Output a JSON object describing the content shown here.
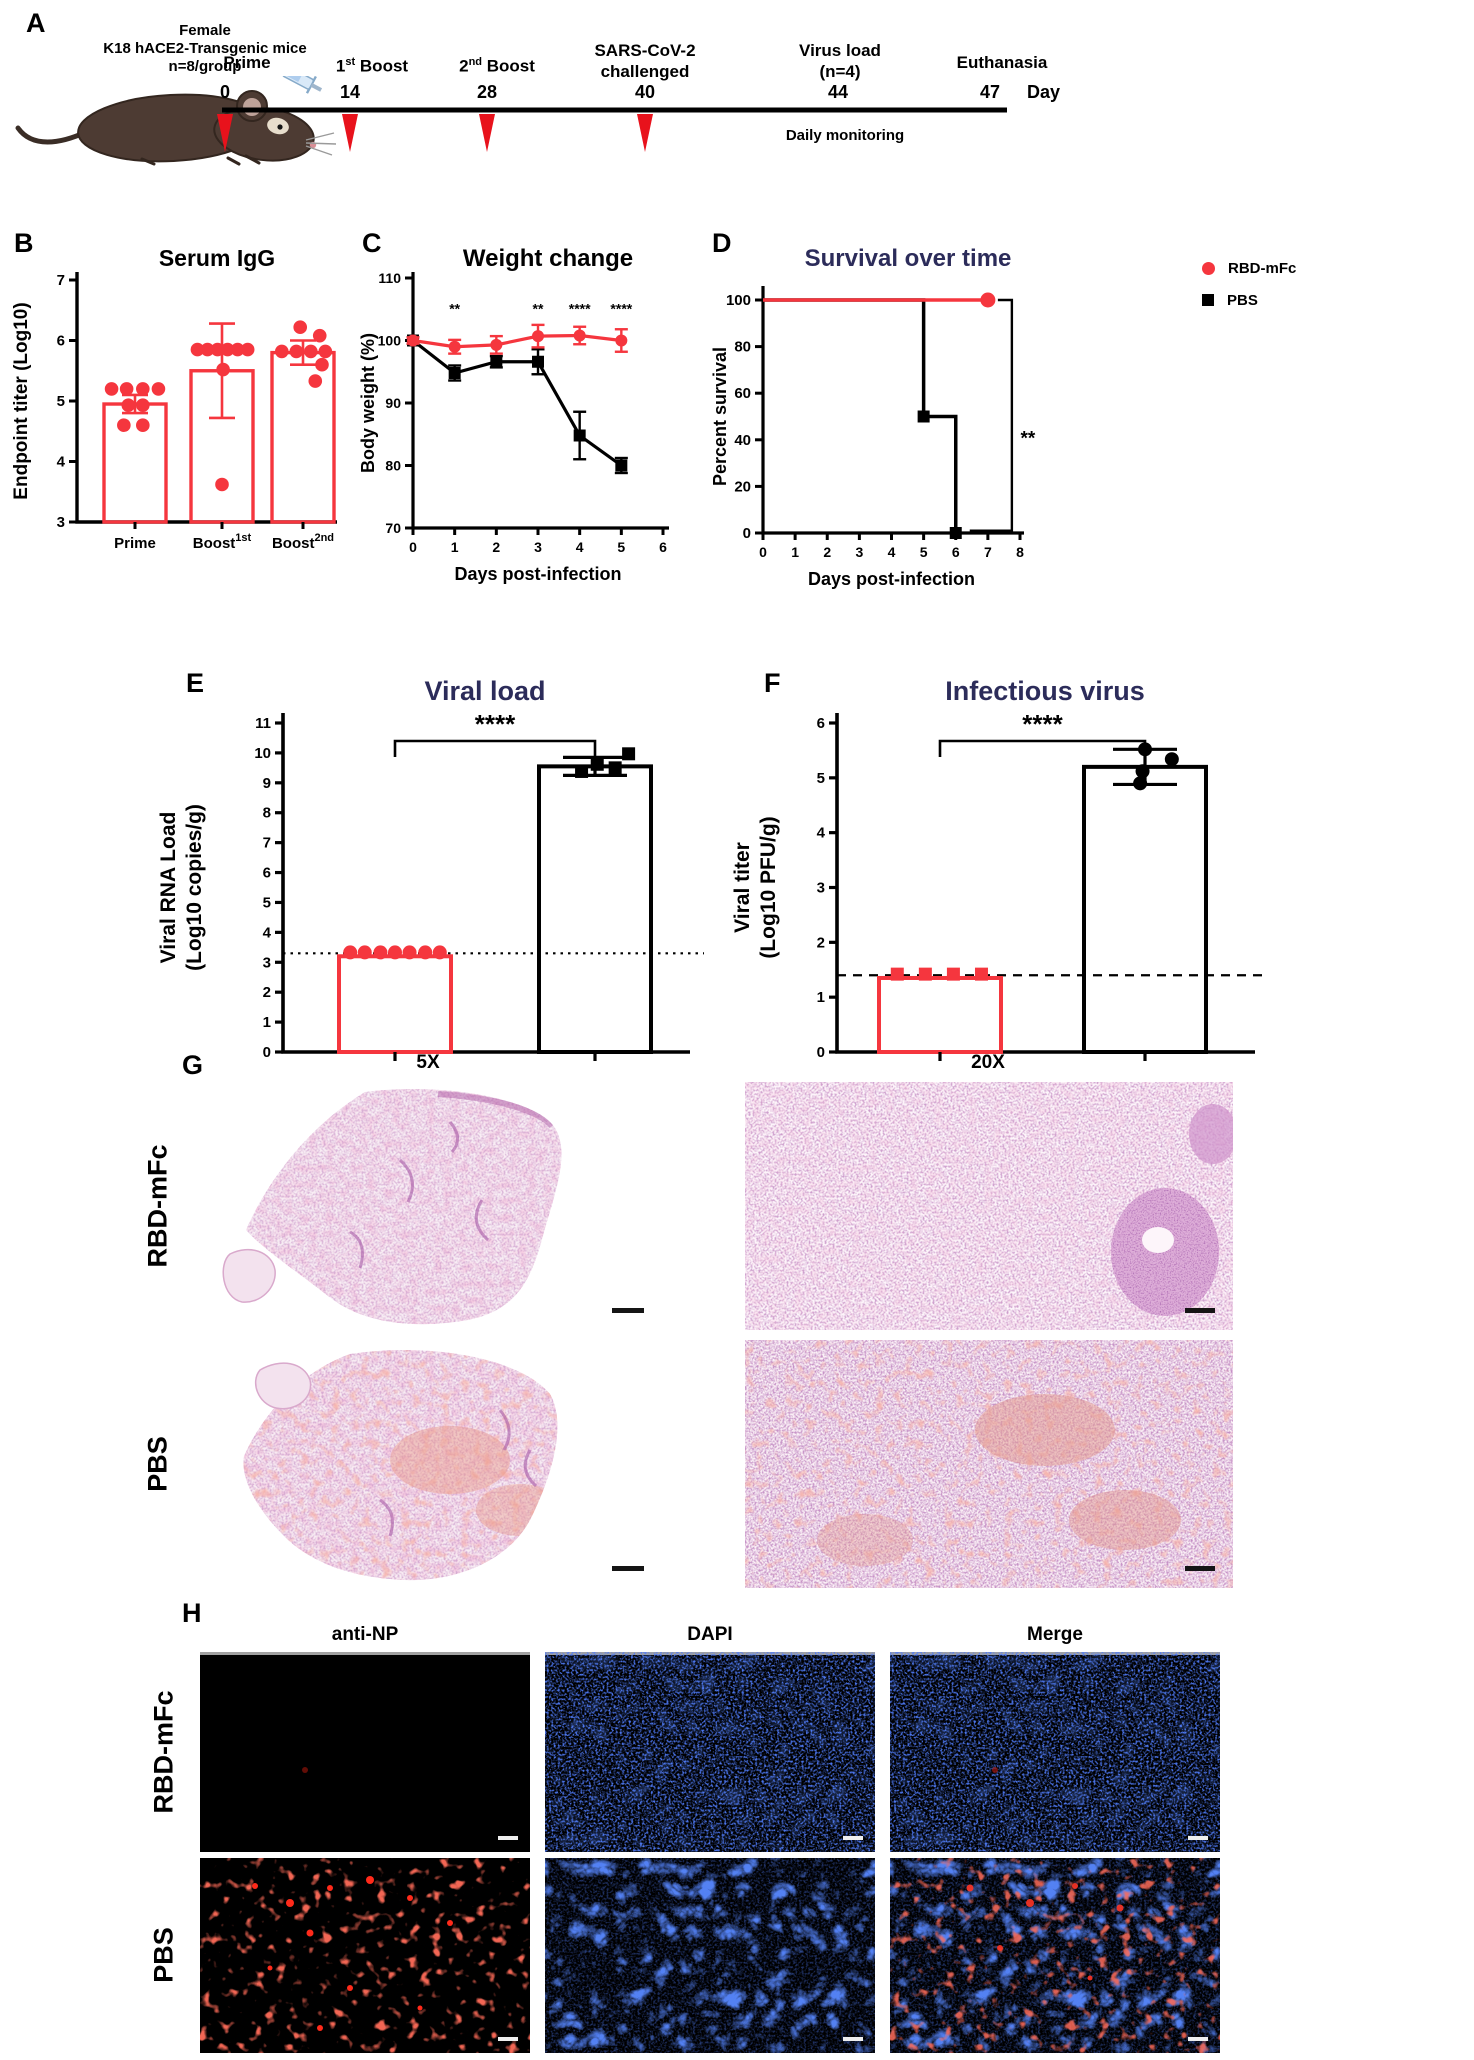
{
  "colors": {
    "red": "#f5363e",
    "black": "#000000",
    "navy": "#2c2c5a"
  },
  "panel_a": {
    "label": "A",
    "subject_lines": [
      "Female",
      "K18 hACE2-Transgenic mice",
      "n=8/group"
    ],
    "mouse_icon": "mouse-with-syringe-illustration",
    "events": [
      {
        "label": "Prime",
        "sup": "",
        "rest": "",
        "line2": "",
        "day": "0",
        "arrow": true
      },
      {
        "label": "1",
        "sup": "st",
        "rest": " Boost",
        "line2": "",
        "day": "14",
        "arrow": true
      },
      {
        "label": "2",
        "sup": "nd",
        "rest": " Boost",
        "line2": "",
        "day": "28",
        "arrow": true
      },
      {
        "label": "SARS-CoV-2",
        "sup": "",
        "rest": "",
        "line2": "challenged",
        "day": "40",
        "arrow": true
      },
      {
        "label": "Virus load",
        "sup": "",
        "rest": "",
        "line2": "(n=4)",
        "day": "44",
        "arrow": false
      },
      {
        "label": "Euthanasia",
        "sup": "",
        "rest": "",
        "line2": "",
        "day": "47",
        "arrow": false
      }
    ],
    "day_word": "Day",
    "monitoring": "Daily monitoring"
  },
  "panel_letters": {
    "b": "B",
    "c": "C",
    "d": "D",
    "e": "E",
    "f": "F"
  },
  "chart_data": [
    {
      "id": "serum_igg",
      "type": "bar_scatter",
      "title": "Serum IgG",
      "title_color": "#000000",
      "ylabel": "Endpoint titer (Log10)",
      "ylim": [
        3,
        7
      ],
      "yticks": [
        3,
        4,
        5,
        6,
        7
      ],
      "bar_color": "#f5363e",
      "bars": [
        {
          "name": "Prime",
          "sup": "",
          "mean": 4.95,
          "err": 0.15,
          "points": [
            [
              -0.42,
              5.2
            ],
            [
              -0.15,
              5.2
            ],
            [
              0.14,
              5.2
            ],
            [
              0.42,
              5.2
            ],
            [
              -0.12,
              4.93
            ],
            [
              0.14,
              4.93
            ],
            [
              -0.2,
              4.6
            ],
            [
              0.14,
              4.6
            ]
          ]
        },
        {
          "name": "Boost",
          "sup": "1st",
          "mean": 5.5,
          "err": 0.78,
          "points": [
            [
              -0.44,
              5.85
            ],
            [
              -0.26,
              5.85
            ],
            [
              -0.08,
              5.85
            ],
            [
              0.1,
              5.85
            ],
            [
              0.28,
              5.85
            ],
            [
              0.46,
              5.85
            ],
            [
              0.02,
              5.52
            ],
            [
              0.0,
              3.62
            ]
          ]
        },
        {
          "name": "Boost",
          "sup": "2nd",
          "mean": 5.8,
          "err": 0.2,
          "points": [
            [
              -0.05,
              6.22
            ],
            [
              0.3,
              6.08
            ],
            [
              -0.38,
              5.82
            ],
            [
              -0.12,
              5.82
            ],
            [
              0.14,
              5.82
            ],
            [
              0.4,
              5.82
            ],
            [
              0.34,
              5.6
            ],
            [
              0.22,
              5.33
            ]
          ]
        }
      ]
    },
    {
      "id": "weight_change",
      "type": "line_err",
      "title": "Weight change",
      "title_color": "#000000",
      "xlabel": "Days post-infection",
      "ylabel": "Body weight (%)",
      "ylim": [
        70,
        110
      ],
      "yticks": [
        70,
        80,
        90,
        100,
        110
      ],
      "xlim": [
        0,
        6
      ],
      "xticks": [
        0,
        1,
        2,
        3,
        4,
        5,
        6
      ],
      "series": [
        {
          "name": "PBS",
          "color": "#000000",
          "marker": "square",
          "x": [
            0,
            1,
            2,
            3,
            4,
            5
          ],
          "y": [
            100,
            94.8,
            96.6,
            96.6,
            84.8,
            80
          ],
          "err": [
            0.5,
            1.2,
            0.9,
            2.0,
            3.8,
            1.2
          ]
        },
        {
          "name": "RBD-mFc",
          "color": "#f5363e",
          "marker": "circle",
          "x": [
            0,
            1,
            2,
            3,
            4,
            5
          ],
          "y": [
            100,
            99,
            99.3,
            100.7,
            100.8,
            100
          ],
          "err": [
            0.5,
            1.1,
            1.4,
            1.8,
            1.4,
            1.8
          ]
        }
      ],
      "annotations": [
        {
          "x": 1,
          "text": "**"
        },
        {
          "x": 3,
          "text": "**"
        },
        {
          "x": 4,
          "text": "****"
        },
        {
          "x": 5,
          "text": "****"
        }
      ]
    },
    {
      "id": "survival",
      "type": "survival",
      "title": "Survival over time",
      "title_color": "#2c2c5a",
      "xlabel": "Days post-infection",
      "ylabel": "Percent survival",
      "ylim": [
        0,
        100
      ],
      "yticks": [
        0,
        20,
        40,
        60,
        80,
        100
      ],
      "xlim": [
        0,
        8
      ],
      "xticks": [
        0,
        1,
        2,
        3,
        4,
        5,
        6,
        7,
        8
      ],
      "series": [
        {
          "name": "PBS",
          "color": "#000000",
          "marker": "square",
          "steps": [
            [
              0,
              100
            ],
            [
              5,
              100
            ],
            [
              5,
              50
            ],
            [
              6,
              50
            ],
            [
              6,
              0
            ]
          ],
          "markers": [
            [
              5,
              50
            ],
            [
              6,
              0
            ]
          ]
        },
        {
          "name": "RBD-mFc",
          "color": "#f5363e",
          "marker": "circle",
          "steps": [
            [
              0,
              100
            ],
            [
              7,
              100
            ]
          ],
          "markers": [
            [
              7,
              100
            ]
          ]
        }
      ],
      "sig": "**",
      "legend": [
        {
          "label": "RBD-mFc",
          "color": "#f5363e",
          "marker": "circle"
        },
        {
          "label": "PBS",
          "color": "#000000",
          "marker": "square"
        }
      ]
    },
    {
      "id": "viral_load",
      "type": "bar_pair",
      "title": "Viral load",
      "title_color": "#2c2c5a",
      "ylabel_lines": [
        "Viral RNA Load",
        "(Log10 copies/g)"
      ],
      "ylim": [
        0,
        11
      ],
      "yticks": [
        0,
        1,
        2,
        3,
        4,
        5,
        6,
        7,
        8,
        9,
        10,
        11
      ],
      "baseline": {
        "value": 3.3,
        "style": "dotted"
      },
      "sig": "****",
      "bars": [
        {
          "name": "RBD-mFc",
          "color": "#f5363e",
          "mean": 3.2,
          "marker": "circle",
          "points": [
            [
              -0.4,
              3.33
            ],
            [
              -0.27,
              3.33
            ],
            [
              -0.13,
              3.33
            ],
            [
              0,
              3.33
            ],
            [
              0.13,
              3.33
            ],
            [
              0.27,
              3.33
            ],
            [
              0.4,
              3.33
            ]
          ]
        },
        {
          "name": "PBS",
          "color": "#000000",
          "mean": 9.55,
          "err": 0.3,
          "marker": "square",
          "points": [
            [
              -0.12,
              9.38
            ],
            [
              0.18,
              9.5
            ],
            [
              0.02,
              9.62
            ],
            [
              0.3,
              9.97
            ]
          ]
        }
      ]
    },
    {
      "id": "infectious_virus",
      "type": "bar_pair",
      "title": "Infectious virus",
      "title_color": "#2c2c5a",
      "ylabel_lines": [
        "Viral titer",
        "(Log10 PFU/g)"
      ],
      "ylim": [
        0,
        6
      ],
      "yticks": [
        0,
        1,
        2,
        3,
        4,
        5,
        6
      ],
      "baseline": {
        "value": 1.4,
        "style": "dashed"
      },
      "sig": "****",
      "bars": [
        {
          "name": "RBD-mFc",
          "color": "#f5363e",
          "mean": 1.35,
          "marker": "square",
          "points": [
            [
              -0.35,
              1.42
            ],
            [
              -0.12,
              1.42
            ],
            [
              0.11,
              1.42
            ],
            [
              0.34,
              1.42
            ]
          ]
        },
        {
          "name": "PBS",
          "color": "#000000",
          "mean": 5.2,
          "err": 0.32,
          "marker": "circle",
          "points": [
            [
              0,
              5.52
            ],
            [
              0.22,
              5.34
            ],
            [
              -0.02,
              5.12
            ],
            [
              -0.04,
              4.9
            ]
          ]
        }
      ]
    }
  ],
  "panel_g": {
    "label": "G",
    "col_headers": [
      "5X",
      "20X"
    ],
    "row_headers": [
      "RBD-mFc",
      "PBS"
    ],
    "image_names": [
      "he-stain-rbd-mfc-5x",
      "he-stain-rbd-mfc-20x",
      "he-stain-pbs-5x",
      "he-stain-pbs-20x"
    ]
  },
  "panel_h": {
    "label": "H",
    "col_headers": [
      "anti-NP",
      "DAPI",
      "Merge"
    ],
    "row_headers": [
      "RBD-mFc",
      "PBS"
    ],
    "image_names": [
      "if-rbd-mfc-anti-np",
      "if-rbd-mfc-dapi",
      "if-rbd-mfc-merge",
      "if-pbs-anti-np",
      "if-pbs-dapi",
      "if-pbs-merge"
    ]
  }
}
